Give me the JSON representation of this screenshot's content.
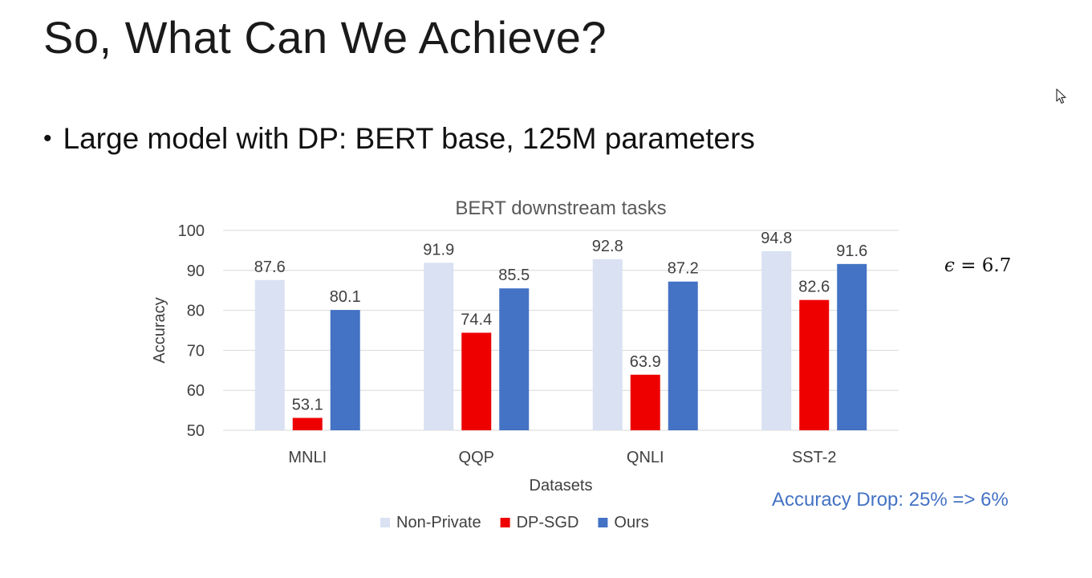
{
  "slide": {
    "title": "So, What Can We Achieve?",
    "bullet_symbol": "•",
    "bullet_text": "Large model with DP: BERT base, 125M parameters",
    "epsilon_symbol": "ϵ",
    "epsilon_rest": " = 6.7",
    "accuracy_drop": "Accuracy Drop: 25% => 6%",
    "cursor_icon": "mouse-pointer-icon"
  },
  "chart_data": {
    "type": "bar",
    "title": "BERT downstream tasks",
    "xlabel": "Datasets",
    "ylabel": "Accuracy",
    "ylim": [
      50,
      100
    ],
    "yticks": [
      50,
      60,
      70,
      80,
      90,
      100
    ],
    "grid": true,
    "legend_position": "bottom",
    "categories": [
      "MNLI",
      "QQP",
      "QNLI",
      "SST-2"
    ],
    "series": [
      {
        "name": "Non-Private",
        "color": "#D9E1F2",
        "values": [
          87.6,
          91.9,
          92.8,
          94.8
        ]
      },
      {
        "name": "DP-SGD",
        "color": "#EE0000",
        "values": [
          53.1,
          74.4,
          63.9,
          82.6
        ]
      },
      {
        "name": "Ours",
        "color": "#4472C4",
        "values": [
          80.1,
          85.5,
          87.2,
          91.6
        ]
      }
    ]
  }
}
